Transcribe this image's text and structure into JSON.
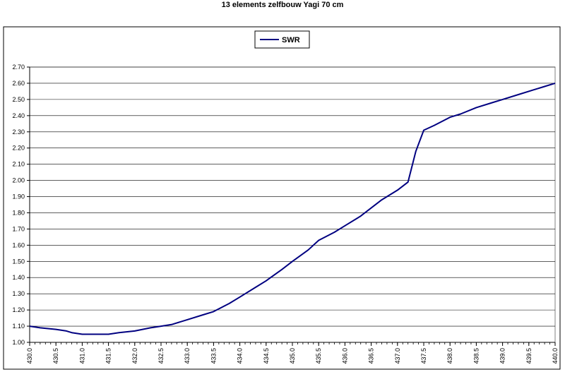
{
  "chart_data": {
    "type": "line",
    "title": "13 elements zelfbouw Yagi 70 cm",
    "xlabel": "",
    "ylabel": "",
    "xlim": [
      430.0,
      440.0
    ],
    "ylim": [
      1.0,
      2.7
    ],
    "x_ticks": [
      "430.0",
      "430.5",
      "431.0",
      "431.5",
      "432.0",
      "432.5",
      "433.0",
      "433.5",
      "434.0",
      "434.5",
      "435.0",
      "435.5",
      "436.0",
      "436.5",
      "437.0",
      "437.5",
      "438.0",
      "438.5",
      "439.0",
      "439.5",
      "440.0"
    ],
    "y_ticks": [
      "1.00",
      "1.10",
      "1.20",
      "1.30",
      "1.40",
      "1.50",
      "1.60",
      "1.70",
      "1.80",
      "1.90",
      "2.00",
      "2.10",
      "2.20",
      "2.30",
      "2.40",
      "2.50",
      "2.60",
      "2.70"
    ],
    "grid": "horizontal",
    "legend": "top-center",
    "series": [
      {
        "name": "SWR",
        "color": "#000080",
        "x": [
          430.0,
          430.2,
          430.5,
          430.7,
          430.8,
          431.0,
          431.5,
          431.7,
          432.0,
          432.3,
          432.5,
          432.7,
          433.0,
          433.3,
          433.5,
          433.8,
          434.0,
          434.3,
          434.5,
          434.8,
          435.0,
          435.3,
          435.5,
          435.8,
          436.0,
          436.3,
          436.5,
          436.7,
          437.0,
          437.2,
          437.35,
          437.5,
          437.7,
          438.0,
          438.2,
          438.5,
          438.8,
          439.0,
          439.3,
          439.6,
          439.8,
          440.0
        ],
        "y": [
          1.1,
          1.09,
          1.08,
          1.07,
          1.06,
          1.05,
          1.05,
          1.06,
          1.07,
          1.09,
          1.1,
          1.11,
          1.14,
          1.17,
          1.19,
          1.24,
          1.28,
          1.34,
          1.38,
          1.45,
          1.5,
          1.57,
          1.63,
          1.68,
          1.72,
          1.78,
          1.83,
          1.88,
          1.94,
          1.99,
          2.18,
          2.31,
          2.34,
          2.39,
          2.41,
          2.45,
          2.48,
          2.5,
          2.53,
          2.56,
          2.58,
          2.6
        ]
      }
    ]
  }
}
